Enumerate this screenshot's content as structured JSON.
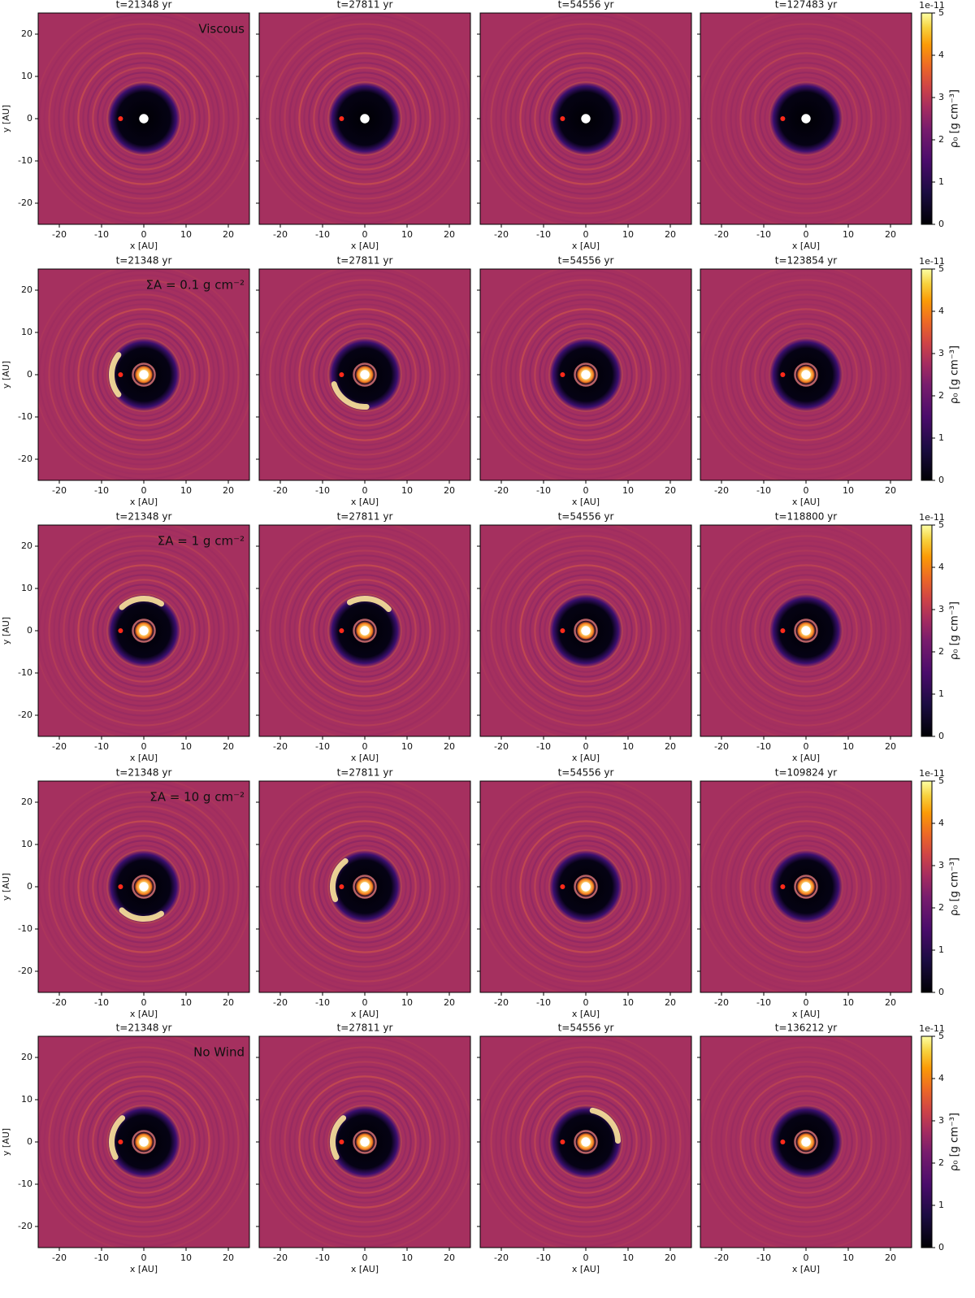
{
  "chart_data": {
    "type": "density-map-grid",
    "xlabel": "x [AU]",
    "ylabel": "y [AU]",
    "xlim": [
      -25,
      25
    ],
    "ylim": [
      -25,
      25
    ],
    "xticks": [
      -20,
      -10,
      0,
      10,
      20
    ],
    "yticks": [
      -20,
      -10,
      0,
      10,
      20
    ],
    "colorbar": {
      "label": "ρ₀ [g cm⁻³]",
      "offset_label": "1e-11",
      "clim": [
        0,
        5
      ],
      "ticks": [
        0,
        1,
        2,
        3,
        4,
        5
      ]
    },
    "rows": [
      {
        "label": "Viscous",
        "titles": [
          "t=21348 yr",
          "t=27811 yr",
          "t=54556 yr",
          "t=127483 yr"
        ]
      },
      {
        "label": "ΣA = 0.1 g cm⁻²",
        "titles": [
          "t=21348 yr",
          "t=27811 yr",
          "t=54556 yr",
          "t=123854 yr"
        ]
      },
      {
        "label": "ΣA = 1 g cm⁻²",
        "titles": [
          "t=21348 yr",
          "t=27811 yr",
          "t=54556 yr",
          "t=118800 yr"
        ]
      },
      {
        "label": "ΣA = 10 g cm⁻²",
        "titles": [
          "t=21348 yr",
          "t=27811 yr",
          "t=54556 yr",
          "t=109824 yr"
        ]
      },
      {
        "label": "No Wind",
        "titles": [
          "t=21348 yr",
          "t=27811 yr",
          "t=54556 yr",
          "t=136212 yr"
        ]
      }
    ]
  }
}
